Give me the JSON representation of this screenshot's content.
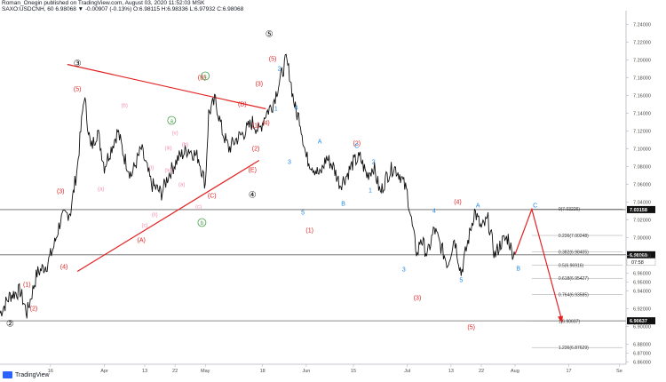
{
  "header": {
    "line1": "Roman_Onegin published on TradingView.com, August 03, 2020 11:52:03 MSK",
    "line2": "SAXO:USDCNH, 60  6.98068  ▼ -0.00907 (-0.13%)  O:6.98115  H:6.98336  L:6.97932  C:6.98068"
  },
  "brand": {
    "name": "TradingView"
  },
  "colors": {
    "red": "#e32222",
    "blue": "#1e88e5",
    "green": "#43a047",
    "pink": "#f48fb1",
    "black": "#111111"
  },
  "chart_data": {
    "type": "line",
    "title": "",
    "xlabel": "",
    "ylabel": "",
    "ylim": [
      6.8575,
      7.2475
    ],
    "y_ticks": [
      "7.24000",
      "7.22000",
      "7.20000",
      "7.18000",
      "7.16000",
      "7.14000",
      "7.12000",
      "7.10000",
      "7.08000",
      "7.06000",
      "7.04000",
      "7.02000",
      "7.00000",
      "6.98000",
      "6.96000",
      "6.95000",
      "6.94000",
      "6.92000",
      "6.90000",
      "6.88000",
      "6.87000",
      "6.86000"
    ],
    "y_tick_values": [
      7.24,
      7.22,
      7.2,
      7.18,
      7.16,
      7.14,
      7.12,
      7.1,
      7.08,
      7.06,
      7.04,
      7.02,
      7.0,
      6.98,
      6.96,
      6.95,
      6.94,
      6.92,
      6.9,
      6.88,
      6.87,
      6.86
    ],
    "x_ticks": [
      "16",
      "Apr",
      "13",
      "22",
      "May",
      "18",
      "Jun",
      "15",
      "Jul",
      "13",
      "22",
      "Aug",
      "17",
      "Se"
    ],
    "x_tick_days": [
      0,
      16,
      28,
      37,
      46,
      63,
      76,
      90,
      106,
      119,
      128,
      138,
      154,
      169
    ],
    "xlim": [
      -15,
      171
    ],
    "x_unit": "trading day index from Mar 16, 2020",
    "series": [
      {
        "kind": "price",
        "x": [
          -15,
          -12,
          -9,
          -7,
          -4,
          -1,
          1,
          3,
          6,
          8,
          10,
          11,
          12,
          14,
          16,
          18,
          20,
          22,
          24,
          27,
          30,
          33,
          35,
          38,
          41,
          44,
          46,
          47,
          49,
          51,
          53,
          55,
          58,
          60,
          62,
          64,
          66,
          68,
          70,
          71,
          72,
          73,
          74,
          76,
          78,
          80,
          82,
          84,
          86,
          88,
          90,
          92,
          94,
          96,
          98,
          100,
          102,
          104,
          106,
          108,
          109,
          110,
          112,
          114,
          116,
          118,
          120,
          122,
          124,
          126,
          128,
          130,
          132,
          134,
          136,
          137,
          138
        ],
        "y": [
          6.915,
          6.935,
          6.94,
          6.915,
          6.96,
          6.97,
          6.99,
          7.02,
          7.03,
          7.08,
          7.16,
          7.13,
          7.1,
          7.12,
          7.08,
          7.1,
          7.12,
          7.09,
          7.07,
          7.1,
          7.06,
          7.05,
          7.07,
          7.09,
          7.1,
          7.09,
          7.06,
          7.14,
          7.155,
          7.12,
          7.1,
          7.11,
          7.12,
          7.13,
          7.12,
          7.14,
          7.15,
          7.175,
          7.2,
          7.185,
          7.16,
          7.14,
          7.135,
          7.09,
          7.08,
          7.07,
          7.09,
          7.08,
          7.06,
          7.07,
          7.085,
          7.09,
          7.07,
          7.08,
          7.05,
          7.07,
          7.08,
          7.07,
          7.05,
          7.0,
          6.98,
          7.0,
          6.98,
          7.01,
          6.99,
          6.97,
          7.0,
          6.96,
          6.995,
          7.03,
          7.01,
          7.02,
          6.98,
          6.995,
          7.0,
          6.985,
          6.981
        ]
      },
      {
        "kind": "red-projection",
        "x": [
          138,
          143,
          152
        ],
        "y": [
          6.981,
          7.032,
          6.906
        ]
      }
    ],
    "horizontal_lines": [
      {
        "y": 7.03158,
        "label": "7.03158"
      },
      {
        "y": 6.98068,
        "label": "6.98068",
        "sublabel": "07:58"
      },
      {
        "y": 6.90637,
        "label": "6.90637"
      }
    ],
    "trendlines": [
      {
        "x": [
          5,
          64
        ],
        "y": [
          7.195,
          7.145
        ]
      },
      {
        "x": [
          8,
          62
        ],
        "y": [
          6.962,
          7.087
        ]
      }
    ],
    "fib_levels": [
      {
        "label": "0(7.03226)",
        "y": 7.03226
      },
      {
        "label": "0.236(7.00248)",
        "y": 7.00248
      },
      {
        "label": "0.382(6.98405)",
        "y": 6.98405
      },
      {
        "label": "0.5(6.96916)",
        "y": 6.96916
      },
      {
        "label": "0.618(6.95427)",
        "y": 6.95427
      },
      {
        "label": "0.764(6.93585)",
        "y": 6.93585
      },
      {
        "label": "1(6.90607)",
        "y": 6.90607
      },
      {
        "label": "1.236(6.87629)",
        "y": 6.87629
      }
    ],
    "fib_x": [
      143,
      170
    ],
    "annotations": [
      {
        "text": "③",
        "x": 8,
        "y": 7.193,
        "color": "black"
      },
      {
        "text": "②",
        "x": -12,
        "y": 6.9,
        "color": "black"
      },
      {
        "text": "⑤",
        "x": 65,
        "y": 7.226,
        "color": "black"
      },
      {
        "text": "④",
        "x": 60,
        "y": 7.045,
        "color": "black"
      },
      {
        "text": "(5)",
        "x": 8,
        "y": 7.165,
        "color": "red"
      },
      {
        "text": "(3)",
        "x": 3,
        "y": 7.05,
        "color": "red"
      },
      {
        "text": "(4)",
        "x": 4,
        "y": 6.965,
        "color": "red"
      },
      {
        "text": "(1)",
        "x": -7,
        "y": 6.945,
        "color": "red"
      },
      {
        "text": "(2)",
        "x": -5,
        "y": 6.918,
        "color": "red"
      },
      {
        "text": "(B)",
        "x": 45,
        "y": 7.178,
        "color": "red"
      },
      {
        "text": "(D)",
        "x": 57,
        "y": 7.148,
        "color": "red"
      },
      {
        "text": "(A)",
        "x": 27,
        "y": 6.995,
        "color": "red"
      },
      {
        "text": "(C)",
        "x": 48,
        "y": 7.045,
        "color": "red"
      },
      {
        "text": "(E)",
        "x": 60,
        "y": 7.074,
        "color": "red"
      },
      {
        "text": "(3)",
        "x": 62,
        "y": 7.171,
        "color": "red"
      },
      {
        "text": "(5)",
        "x": 66,
        "y": 7.199,
        "color": "red"
      },
      {
        "text": "(4)",
        "x": 64,
        "y": 7.127,
        "color": "red"
      },
      {
        "text": "(1)",
        "x": 61,
        "y": 7.124,
        "color": "red"
      },
      {
        "text": "(2)",
        "x": 61,
        "y": 7.098,
        "color": "red"
      },
      {
        "text": "(2)",
        "x": 91,
        "y": 7.104,
        "color": "red"
      },
      {
        "text": "(1)",
        "x": 77,
        "y": 7.006,
        "color": "red"
      },
      {
        "text": "(3)",
        "x": 109,
        "y": 6.93,
        "color": "red"
      },
      {
        "text": "(4)",
        "x": 121,
        "y": 7.038,
        "color": "red"
      },
      {
        "text": "(5)",
        "x": 125,
        "y": 6.897,
        "color": "red"
      },
      {
        "text": "a",
        "x": 36,
        "y": 7.13,
        "color": "green",
        "circled": true
      },
      {
        "text": "c",
        "x": 46,
        "y": 7.18,
        "color": "green",
        "circled": true
      },
      {
        "text": "b",
        "x": 45,
        "y": 7.015,
        "color": "green",
        "circled": true
      },
      {
        "text": "(b)",
        "x": 22,
        "y": 7.147,
        "color": "pink"
      },
      {
        "text": "(a)",
        "x": 15,
        "y": 7.053,
        "color": "pink"
      },
      {
        "text": "(c)",
        "x": 28,
        "y": 7.012,
        "color": "pink"
      },
      {
        "text": "(ii)",
        "x": 31,
        "y": 7.024,
        "color": "pink"
      },
      {
        "text": "(i)",
        "x": 30,
        "y": 7.077,
        "color": "pink"
      },
      {
        "text": "(iii)",
        "x": 35,
        "y": 7.099,
        "color": "pink"
      },
      {
        "text": "(iv)",
        "x": 35,
        "y": 7.074,
        "color": "pink"
      },
      {
        "text": "(v)",
        "x": 37,
        "y": 7.116,
        "color": "pink"
      },
      {
        "text": "(b)",
        "x": 40,
        "y": 7.103,
        "color": "pink"
      },
      {
        "text": "(a)",
        "x": 39,
        "y": 7.058,
        "color": "pink"
      },
      {
        "text": "(c)",
        "x": 44,
        "y": 7.033,
        "color": "pink"
      },
      {
        "text": "1",
        "x": 67,
        "y": 7.143,
        "color": "blue"
      },
      {
        "text": "2",
        "x": 68,
        "y": 7.188,
        "color": "blue"
      },
      {
        "text": "3",
        "x": 71,
        "y": 7.083,
        "color": "blue"
      },
      {
        "text": "4",
        "x": 73,
        "y": 7.144,
        "color": "blue"
      },
      {
        "text": "5",
        "x": 75,
        "y": 7.026,
        "color": "blue"
      },
      {
        "text": "A",
        "x": 80,
        "y": 7.106,
        "color": "blue"
      },
      {
        "text": "B",
        "x": 87,
        "y": 7.036,
        "color": "blue"
      },
      {
        "text": "C",
        "x": 91,
        "y": 7.101,
        "color": "blue"
      },
      {
        "text": "1",
        "x": 95,
        "y": 7.051,
        "color": "blue"
      },
      {
        "text": "2",
        "x": 96,
        "y": 7.083,
        "color": "blue"
      },
      {
        "text": "3",
        "x": 105,
        "y": 6.962,
        "color": "blue"
      },
      {
        "text": "4",
        "x": 114,
        "y": 7.028,
        "color": "blue"
      },
      {
        "text": "5",
        "x": 122,
        "y": 6.95,
        "color": "blue"
      },
      {
        "text": "A",
        "x": 127,
        "y": 7.034,
        "color": "blue"
      },
      {
        "text": "B",
        "x": 139,
        "y": 6.963,
        "color": "blue"
      },
      {
        "text": "C",
        "x": 144,
        "y": 7.034,
        "color": "blue"
      }
    ]
  }
}
